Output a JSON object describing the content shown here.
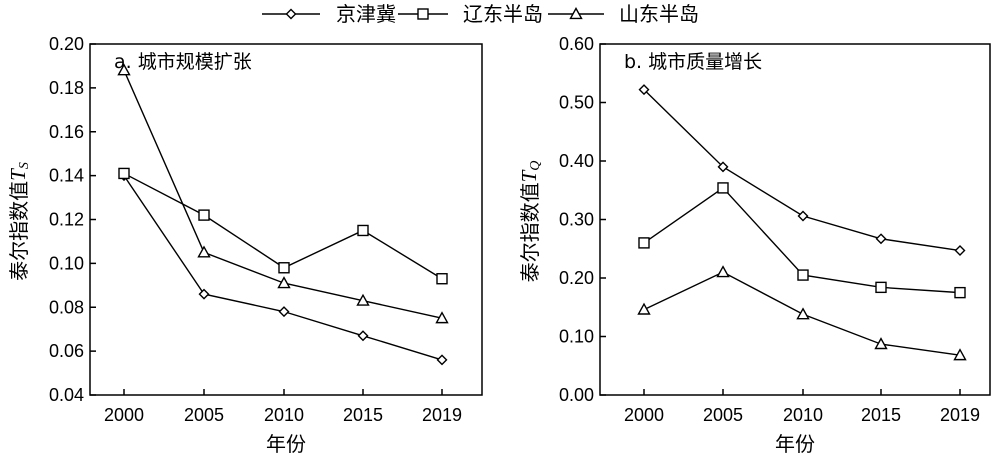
{
  "legend": {
    "items": [
      {
        "name": "京津冀",
        "marker": "diamond"
      },
      {
        "name": "辽东半岛",
        "marker": "square"
      },
      {
        "name": "山东半岛",
        "marker": "triangle"
      }
    ]
  },
  "chart_data": [
    {
      "type": "line",
      "title": "a. 城市规模扩张",
      "xlabel": "年份",
      "ylabel": "泰尔指数值",
      "ylabel_sub": "S",
      "ylabel_var": "T",
      "categories": [
        "2000",
        "2005",
        "2010",
        "2015",
        "2019"
      ],
      "ylim": [
        0.04,
        0.2
      ],
      "yticks": [
        "0.04",
        "0.06",
        "0.08",
        "0.10",
        "0.12",
        "0.14",
        "0.16",
        "0.18",
        "0.20"
      ],
      "series": [
        {
          "name": "京津冀",
          "marker": "diamond",
          "values": [
            0.14,
            0.086,
            0.078,
            0.067,
            0.056
          ]
        },
        {
          "name": "辽东半岛",
          "marker": "square",
          "values": [
            0.141,
            0.122,
            0.098,
            0.115,
            0.093
          ]
        },
        {
          "name": "山东半岛",
          "marker": "triangle",
          "values": [
            0.188,
            0.105,
            0.091,
            0.083,
            0.075
          ]
        }
      ]
    },
    {
      "type": "line",
      "title": "b. 城市质量增长",
      "xlabel": "年份",
      "ylabel": "泰尔指数值",
      "ylabel_sub": "Q",
      "ylabel_var": "T",
      "categories": [
        "2000",
        "2005",
        "2010",
        "2015",
        "2019"
      ],
      "ylim": [
        0.0,
        0.6
      ],
      "yticks": [
        "0.00",
        "0.10",
        "0.20",
        "0.30",
        "0.40",
        "0.50",
        "0.60"
      ],
      "series": [
        {
          "name": "京津冀",
          "marker": "diamond",
          "values": [
            0.522,
            0.39,
            0.306,
            0.267,
            0.247
          ]
        },
        {
          "name": "辽东半岛",
          "marker": "square",
          "values": [
            0.26,
            0.354,
            0.205,
            0.184,
            0.175
          ]
        },
        {
          "name": "山东半岛",
          "marker": "triangle",
          "values": [
            0.146,
            0.21,
            0.138,
            0.087,
            0.068
          ]
        }
      ]
    }
  ]
}
